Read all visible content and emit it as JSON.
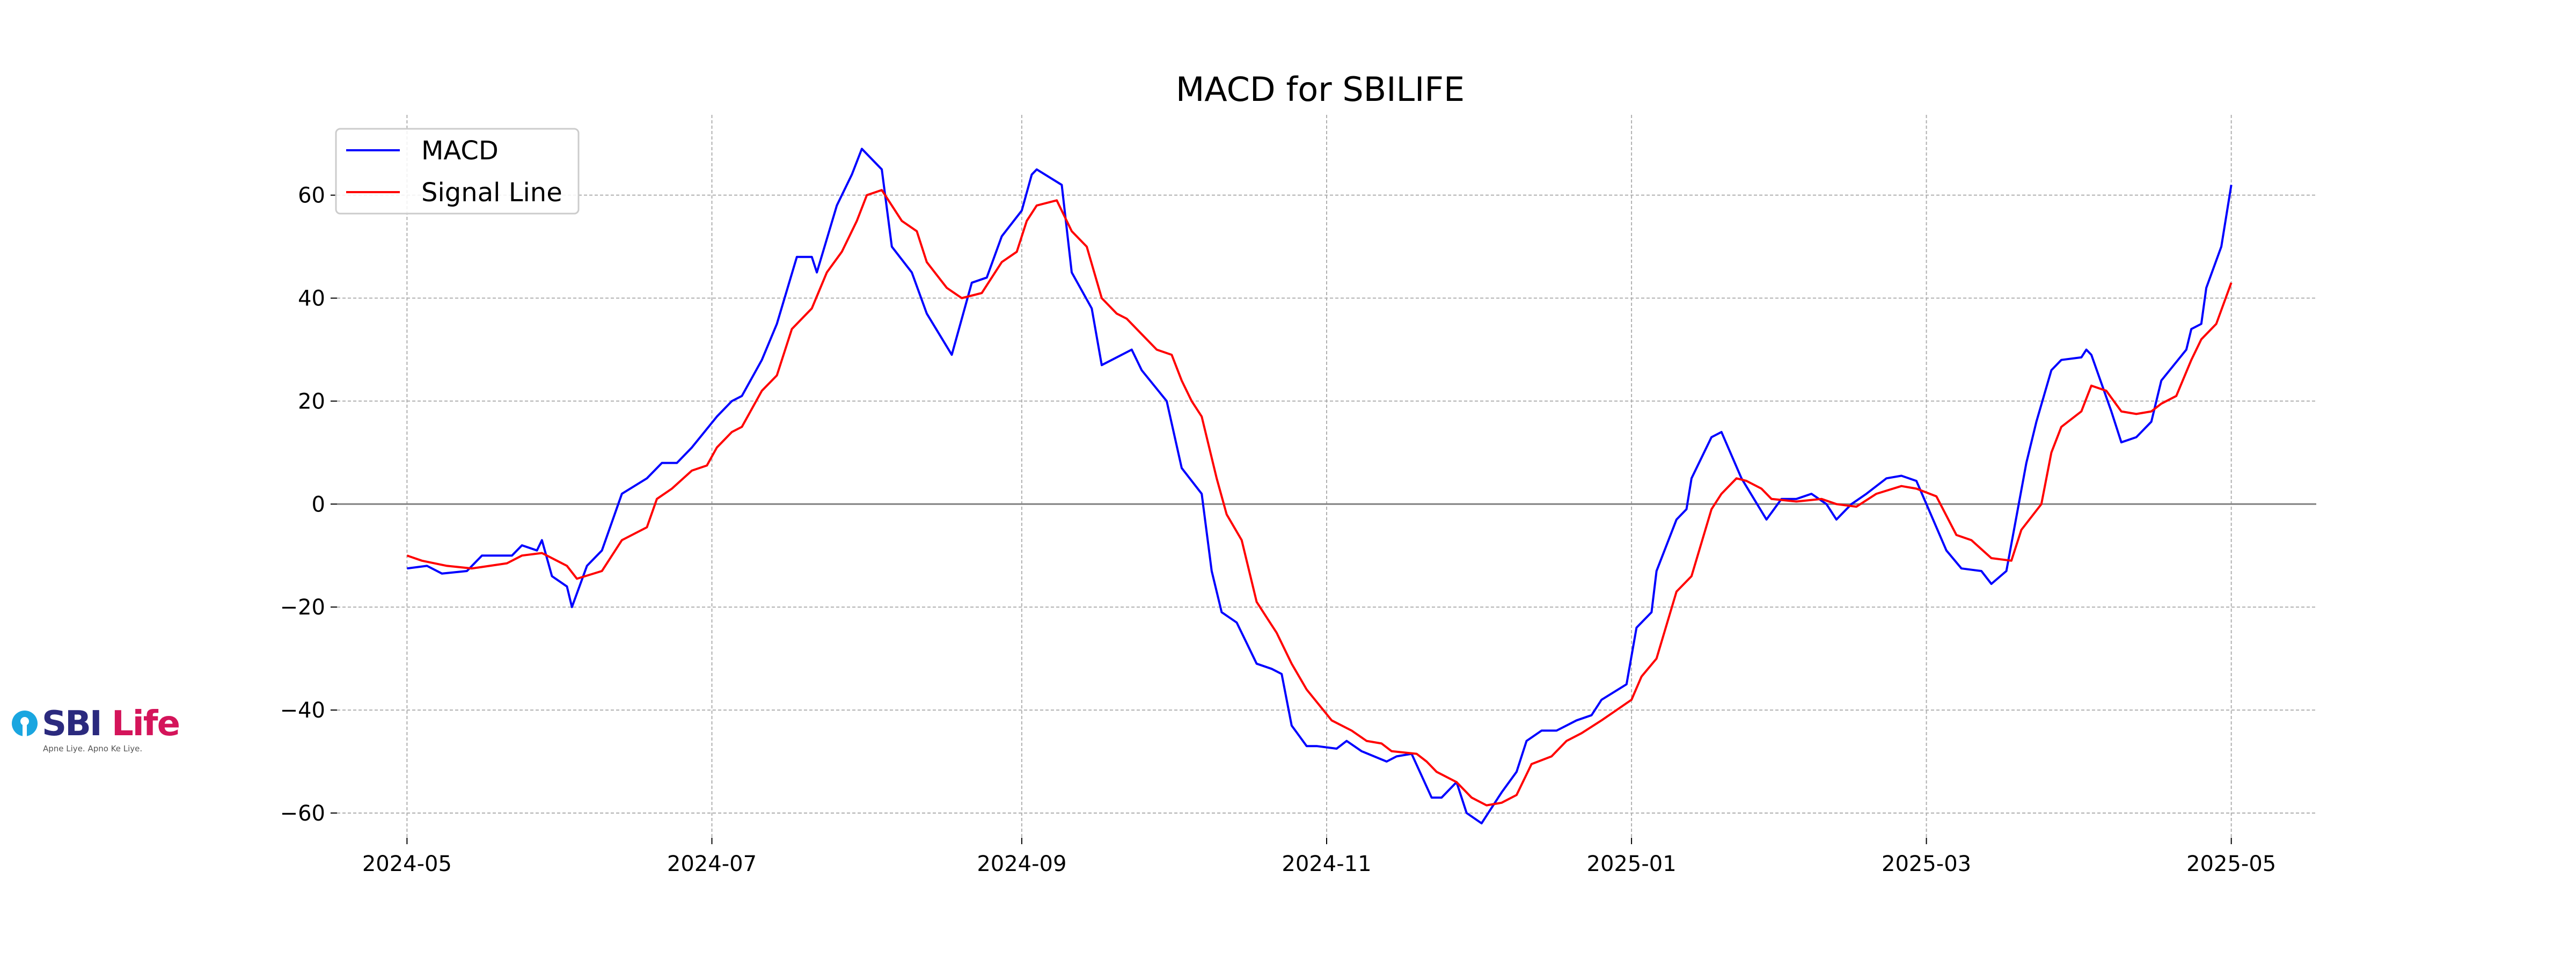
{
  "chart_data": {
    "type": "line",
    "title": "MACD for SBILIFE",
    "xlabel": "",
    "ylabel": "",
    "xlim": [
      "2024-04-17",
      "2025-05-18"
    ],
    "ylim": [
      -64.8,
      75.6
    ],
    "x_ticks": [
      "2024-05",
      "2024-07",
      "2024-09",
      "2024-11",
      "2025-01",
      "2025-03",
      "2025-05"
    ],
    "y_ticks": [
      -60,
      -40,
      -20,
      0,
      20,
      40,
      60
    ],
    "grid": true,
    "zero_line": true,
    "legend_position": "top-left",
    "series": [
      {
        "name": "MACD",
        "color": "#0000ff",
        "points": [
          [
            "2024-05-01",
            -12.5
          ],
          [
            "2024-05-05",
            -12
          ],
          [
            "2024-05-08",
            -13.5
          ],
          [
            "2024-05-13",
            -13
          ],
          [
            "2024-05-16",
            -10
          ],
          [
            "2024-05-22",
            -10
          ],
          [
            "2024-05-24",
            -8
          ],
          [
            "2024-05-27",
            -9
          ],
          [
            "2024-05-28",
            -7
          ],
          [
            "2024-05-30",
            -14
          ],
          [
            "2024-06-02",
            -16
          ],
          [
            "2024-06-03",
            -20
          ],
          [
            "2024-06-06",
            -12
          ],
          [
            "2024-06-09",
            -9
          ],
          [
            "2024-06-13",
            2
          ],
          [
            "2024-06-18",
            5
          ],
          [
            "2024-06-21",
            8
          ],
          [
            "2024-06-24",
            8
          ],
          [
            "2024-06-27",
            11
          ],
          [
            "2024-07-02",
            17
          ],
          [
            "2024-07-05",
            20
          ],
          [
            "2024-07-07",
            21
          ],
          [
            "2024-07-11",
            28
          ],
          [
            "2024-07-14",
            35
          ],
          [
            "2024-07-18",
            48
          ],
          [
            "2024-07-21",
            48
          ],
          [
            "2024-07-22",
            45
          ],
          [
            "2024-07-26",
            58
          ],
          [
            "2024-07-29",
            64
          ],
          [
            "2024-07-31",
            69
          ],
          [
            "2024-08-04",
            65
          ],
          [
            "2024-08-06",
            50
          ],
          [
            "2024-08-10",
            45
          ],
          [
            "2024-08-13",
            37
          ],
          [
            "2024-08-18",
            29
          ],
          [
            "2024-08-22",
            43
          ],
          [
            "2024-08-25",
            44
          ],
          [
            "2024-08-28",
            52
          ],
          [
            "2024-09-01",
            57
          ],
          [
            "2024-09-03",
            64
          ],
          [
            "2024-09-04",
            65
          ],
          [
            "2024-09-09",
            62
          ],
          [
            "2024-09-11",
            45
          ],
          [
            "2024-09-15",
            38
          ],
          [
            "2024-09-17",
            27
          ],
          [
            "2024-09-23",
            30
          ],
          [
            "2024-09-25",
            26
          ],
          [
            "2024-09-30",
            20
          ],
          [
            "2024-10-03",
            7
          ],
          [
            "2024-10-07",
            2
          ],
          [
            "2024-10-09",
            -13
          ],
          [
            "2024-10-11",
            -21
          ],
          [
            "2024-10-14",
            -23
          ],
          [
            "2024-10-16",
            -27
          ],
          [
            "2024-10-18",
            -31
          ],
          [
            "2024-10-21",
            -32
          ],
          [
            "2024-10-23",
            -33
          ],
          [
            "2024-10-25",
            -43
          ],
          [
            "2024-10-28",
            -47
          ],
          [
            "2024-10-30",
            -47
          ],
          [
            "2024-11-03",
            -47.5
          ],
          [
            "2024-11-05",
            -46
          ],
          [
            "2024-11-08",
            -48
          ],
          [
            "2024-11-13",
            -50
          ],
          [
            "2024-11-15",
            -49
          ],
          [
            "2024-11-18",
            -48.5
          ],
          [
            "2024-11-22",
            -57
          ],
          [
            "2024-11-24",
            -57
          ],
          [
            "2024-11-27",
            -54
          ],
          [
            "2024-11-29",
            -60
          ],
          [
            "2024-12-02",
            -62
          ],
          [
            "2024-12-06",
            -56
          ],
          [
            "2024-12-09",
            -52
          ],
          [
            "2024-12-11",
            -46
          ],
          [
            "2024-12-14",
            -44
          ],
          [
            "2024-12-17",
            -44
          ],
          [
            "2024-12-21",
            -42
          ],
          [
            "2024-12-24",
            -41
          ],
          [
            "2024-12-26",
            -38
          ],
          [
            "2024-12-31",
            -35
          ],
          [
            "2025-01-02",
            -24
          ],
          [
            "2025-01-05",
            -21
          ],
          [
            "2025-01-06",
            -13
          ],
          [
            "2025-01-10",
            -3
          ],
          [
            "2025-01-12",
            -1
          ],
          [
            "2025-01-13",
            5
          ],
          [
            "2025-01-17",
            13
          ],
          [
            "2025-01-19",
            14
          ],
          [
            "2025-01-23",
            5
          ],
          [
            "2025-01-28",
            -3
          ],
          [
            "2025-01-31",
            1
          ],
          [
            "2025-02-03",
            1
          ],
          [
            "2025-02-06",
            2
          ],
          [
            "2025-02-09",
            0
          ],
          [
            "2025-02-11",
            -3
          ],
          [
            "2025-02-14",
            0
          ],
          [
            "2025-02-17",
            2
          ],
          [
            "2025-02-21",
            5
          ],
          [
            "2025-02-24",
            5.5
          ],
          [
            "2025-02-27",
            4.5
          ],
          [
            "2025-03-01",
            0
          ],
          [
            "2025-03-05",
            -9
          ],
          [
            "2025-03-08",
            -12.5
          ],
          [
            "2025-03-12",
            -13
          ],
          [
            "2025-03-14",
            -15.5
          ],
          [
            "2025-03-17",
            -13
          ],
          [
            "2025-03-21",
            8
          ],
          [
            "2025-03-23",
            16
          ],
          [
            "2025-03-26",
            26
          ],
          [
            "2025-03-28",
            28
          ],
          [
            "2025-04-01",
            28.5
          ],
          [
            "2025-04-02",
            30
          ],
          [
            "2025-04-03",
            29
          ],
          [
            "2025-04-07",
            18
          ],
          [
            "2025-04-09",
            12
          ],
          [
            "2025-04-12",
            13
          ],
          [
            "2025-04-15",
            16
          ],
          [
            "2025-04-17",
            24
          ],
          [
            "2025-04-22",
            30
          ],
          [
            "2025-04-23",
            34
          ],
          [
            "2025-04-25",
            35
          ],
          [
            "2025-04-26",
            42
          ],
          [
            "2025-04-29",
            50
          ],
          [
            "2025-05-01",
            62
          ]
        ]
      },
      {
        "name": "Signal Line",
        "color": "#ff0000",
        "points": [
          [
            "2024-05-01",
            -10
          ],
          [
            "2024-05-04",
            -11
          ],
          [
            "2024-05-09",
            -12
          ],
          [
            "2024-05-14",
            -12.5
          ],
          [
            "2024-05-21",
            -11.5
          ],
          [
            "2024-05-24",
            -10
          ],
          [
            "2024-05-28",
            -9.5
          ],
          [
            "2024-05-31",
            -11
          ],
          [
            "2024-06-02",
            -12
          ],
          [
            "2024-06-04",
            -14.5
          ],
          [
            "2024-06-09",
            -13
          ],
          [
            "2024-06-13",
            -7
          ],
          [
            "2024-06-18",
            -4.5
          ],
          [
            "2024-06-20",
            1
          ],
          [
            "2024-06-23",
            3
          ],
          [
            "2024-06-27",
            6.5
          ],
          [
            "2024-06-30",
            7.5
          ],
          [
            "2024-07-02",
            11
          ],
          [
            "2024-07-05",
            14
          ],
          [
            "2024-07-07",
            15
          ],
          [
            "2024-07-11",
            22
          ],
          [
            "2024-07-14",
            25
          ],
          [
            "2024-07-17",
            34
          ],
          [
            "2024-07-21",
            38
          ],
          [
            "2024-07-24",
            45
          ],
          [
            "2024-07-27",
            49
          ],
          [
            "2024-07-30",
            55
          ],
          [
            "2024-08-01",
            60
          ],
          [
            "2024-08-04",
            61
          ],
          [
            "2024-08-08",
            55
          ],
          [
            "2024-08-11",
            53
          ],
          [
            "2024-08-13",
            47
          ],
          [
            "2024-08-17",
            42
          ],
          [
            "2024-08-20",
            40
          ],
          [
            "2024-08-24",
            41
          ],
          [
            "2024-08-28",
            47
          ],
          [
            "2024-08-31",
            49
          ],
          [
            "2024-09-02",
            55
          ],
          [
            "2024-09-04",
            58
          ],
          [
            "2024-09-08",
            59
          ],
          [
            "2024-09-11",
            53
          ],
          [
            "2024-09-14",
            50
          ],
          [
            "2024-09-17",
            40
          ],
          [
            "2024-09-20",
            37
          ],
          [
            "2024-09-22",
            36
          ],
          [
            "2024-09-25",
            33
          ],
          [
            "2024-09-28",
            30
          ],
          [
            "2024-10-01",
            29
          ],
          [
            "2024-10-03",
            24
          ],
          [
            "2024-10-05",
            20
          ],
          [
            "2024-10-07",
            17
          ],
          [
            "2024-10-10",
            5
          ],
          [
            "2024-10-12",
            -2
          ],
          [
            "2024-10-15",
            -7
          ],
          [
            "2024-10-18",
            -19
          ],
          [
            "2024-10-20",
            -22
          ],
          [
            "2024-10-22",
            -25
          ],
          [
            "2024-10-25",
            -31
          ],
          [
            "2024-10-28",
            -36
          ],
          [
            "2024-11-02",
            -42
          ],
          [
            "2024-11-06",
            -44
          ],
          [
            "2024-11-09",
            -46
          ],
          [
            "2024-11-12",
            -46.5
          ],
          [
            "2024-11-14",
            -48
          ],
          [
            "2024-11-19",
            -48.5
          ],
          [
            "2024-11-21",
            -50
          ],
          [
            "2024-11-23",
            -52
          ],
          [
            "2024-11-27",
            -54
          ],
          [
            "2024-11-30",
            -57
          ],
          [
            "2024-12-03",
            -58.5
          ],
          [
            "2024-12-06",
            -58
          ],
          [
            "2024-12-09",
            -56.5
          ],
          [
            "2024-12-12",
            -50.5
          ],
          [
            "2024-12-16",
            -49
          ],
          [
            "2024-12-19",
            -46
          ],
          [
            "2024-12-22",
            -44.5
          ],
          [
            "2024-12-26",
            -42
          ],
          [
            "2024-12-29",
            -40
          ],
          [
            "2025-01-01",
            -38
          ],
          [
            "2025-01-03",
            -33.5
          ],
          [
            "2025-01-06",
            -30
          ],
          [
            "2025-01-10",
            -17
          ],
          [
            "2025-01-13",
            -14
          ],
          [
            "2025-01-17",
            -1
          ],
          [
            "2025-01-19",
            2
          ],
          [
            "2025-01-22",
            5
          ],
          [
            "2025-01-24",
            4.5
          ],
          [
            "2025-01-27",
            3
          ],
          [
            "2025-01-29",
            1
          ],
          [
            "2025-02-03",
            0.5
          ],
          [
            "2025-02-08",
            1
          ],
          [
            "2025-02-11",
            0
          ],
          [
            "2025-02-15",
            -0.5
          ],
          [
            "2025-02-19",
            2
          ],
          [
            "2025-02-24",
            3.5
          ],
          [
            "2025-02-27",
            3
          ],
          [
            "2025-03-03",
            1.5
          ],
          [
            "2025-03-07",
            -6
          ],
          [
            "2025-03-10",
            -7
          ],
          [
            "2025-03-14",
            -10.5
          ],
          [
            "2025-03-18",
            -11
          ],
          [
            "2025-03-20",
            -5
          ],
          [
            "2025-03-24",
            0
          ],
          [
            "2025-03-26",
            10
          ],
          [
            "2025-03-28",
            15
          ],
          [
            "2025-04-01",
            18
          ],
          [
            "2025-04-03",
            23
          ],
          [
            "2025-04-06",
            22
          ],
          [
            "2025-04-09",
            18
          ],
          [
            "2025-04-12",
            17.5
          ],
          [
            "2025-04-15",
            18
          ],
          [
            "2025-04-17",
            19.5
          ],
          [
            "2025-04-20",
            21
          ],
          [
            "2025-04-23",
            28
          ],
          [
            "2025-04-25",
            32
          ],
          [
            "2025-04-28",
            35
          ],
          [
            "2025-05-01",
            43
          ]
        ]
      }
    ]
  },
  "logo": {
    "brand_primary": "SBI",
    "brand_secondary": "Life",
    "tagline": "Apne Liye. Apno Ke Liye.",
    "colors": {
      "sbi": "#2b2a7e",
      "life": "#d4145a",
      "mark": "#1aa6e0"
    }
  }
}
